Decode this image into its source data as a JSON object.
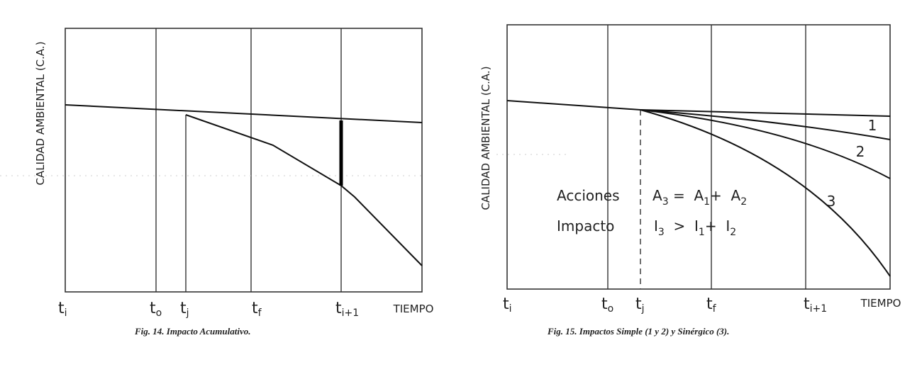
{
  "figure_left": {
    "y_label": "CALIDAD AMBIENTAL (C.A.)",
    "x_labels": [
      {
        "base": "t",
        "sub": "i"
      },
      {
        "base": "t",
        "sub": "o"
      },
      {
        "base": "t",
        "sub": "j"
      },
      {
        "base": "t",
        "sub": "f"
      },
      {
        "base": "t",
        "sub": "i+1"
      }
    ],
    "x_axis_label": "TIEMPO",
    "caption": "Fig. 14.   Impacto Acumulativo."
  },
  "figure_right": {
    "y_label": "CALIDAD AMBIENTAL (C.A.)",
    "x_labels": [
      {
        "base": "t",
        "sub": "i"
      },
      {
        "base": "t",
        "sub": "o"
      },
      {
        "base": "t",
        "sub": "j"
      },
      {
        "base": "t",
        "sub": "f"
      },
      {
        "base": "t",
        "sub": "i+1"
      }
    ],
    "x_axis_label": "TIEMPO",
    "curve_labels": [
      "1",
      "2",
      "3"
    ],
    "row_1": {
      "label": "Acciones",
      "equation": [
        "A",
        "3",
        " =  A",
        "1",
        "+  A",
        "2"
      ]
    },
    "row_2": {
      "label": "Impacto",
      "equation": [
        "I",
        "3",
        "  >  I",
        "1",
        "+  I",
        "2"
      ]
    },
    "caption": "Fig. 15.  Impactos Simple (1 y 2) y Sinérgico (3)."
  }
}
